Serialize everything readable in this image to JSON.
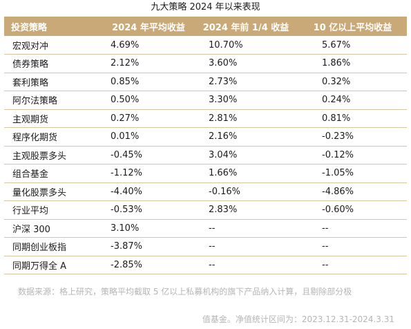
{
  "title": "九大策略 2024 年以来表现",
  "table": {
    "headers": [
      "投资策略",
      "2024 年平均收益",
      "2024 年前 1/4 收益",
      "10 亿以上平均收益"
    ],
    "rows": [
      [
        "宏观对冲",
        "4.69%",
        "10.70%",
        "5.67%"
      ],
      [
        "债券策略",
        "2.12%",
        "3.60%",
        "1.86%"
      ],
      [
        "套利策略",
        "0.85%",
        "2.73%",
        "0.32%"
      ],
      [
        "阿尔法策略",
        "0.50%",
        "3.30%",
        "0.24%"
      ],
      [
        "主观期货",
        "0.27%",
        "2.81%",
        "0.81%"
      ],
      [
        "程序化期货",
        "0.01%",
        "2.16%",
        "-0.23%"
      ],
      [
        "主观股票多头",
        "-0.45%",
        "3.04%",
        "-0.12%"
      ],
      [
        "组合基金",
        "-1.12%",
        "1.66%",
        "-1.05%"
      ],
      [
        "量化股票多头",
        "-4.40%",
        "-0.16%",
        "-4.86%"
      ],
      [
        "行业平均",
        "-0.53%",
        "2.83%",
        "-0.60%"
      ],
      [
        "沪深 300",
        "3.10%",
        "--",
        "--"
      ],
      [
        "同期创业板指",
        "-3.87%",
        "--",
        "--"
      ],
      [
        "同期万得全 A",
        "-2.85%",
        "--",
        "--"
      ]
    ]
  },
  "source_note": "数据来源：格上研究，策略平均截取 5 亿以上私募机构的旗下产品纳入计算，且剔除部分极",
  "footer_note": "值基金。净值统计区间为：2023.12.31-2024.3.31",
  "colors": {
    "header_bg": "#c9a978",
    "header_text": "#ffffff",
    "row_divider": "#d7c4a1",
    "note_text": "#b5b5b5"
  }
}
